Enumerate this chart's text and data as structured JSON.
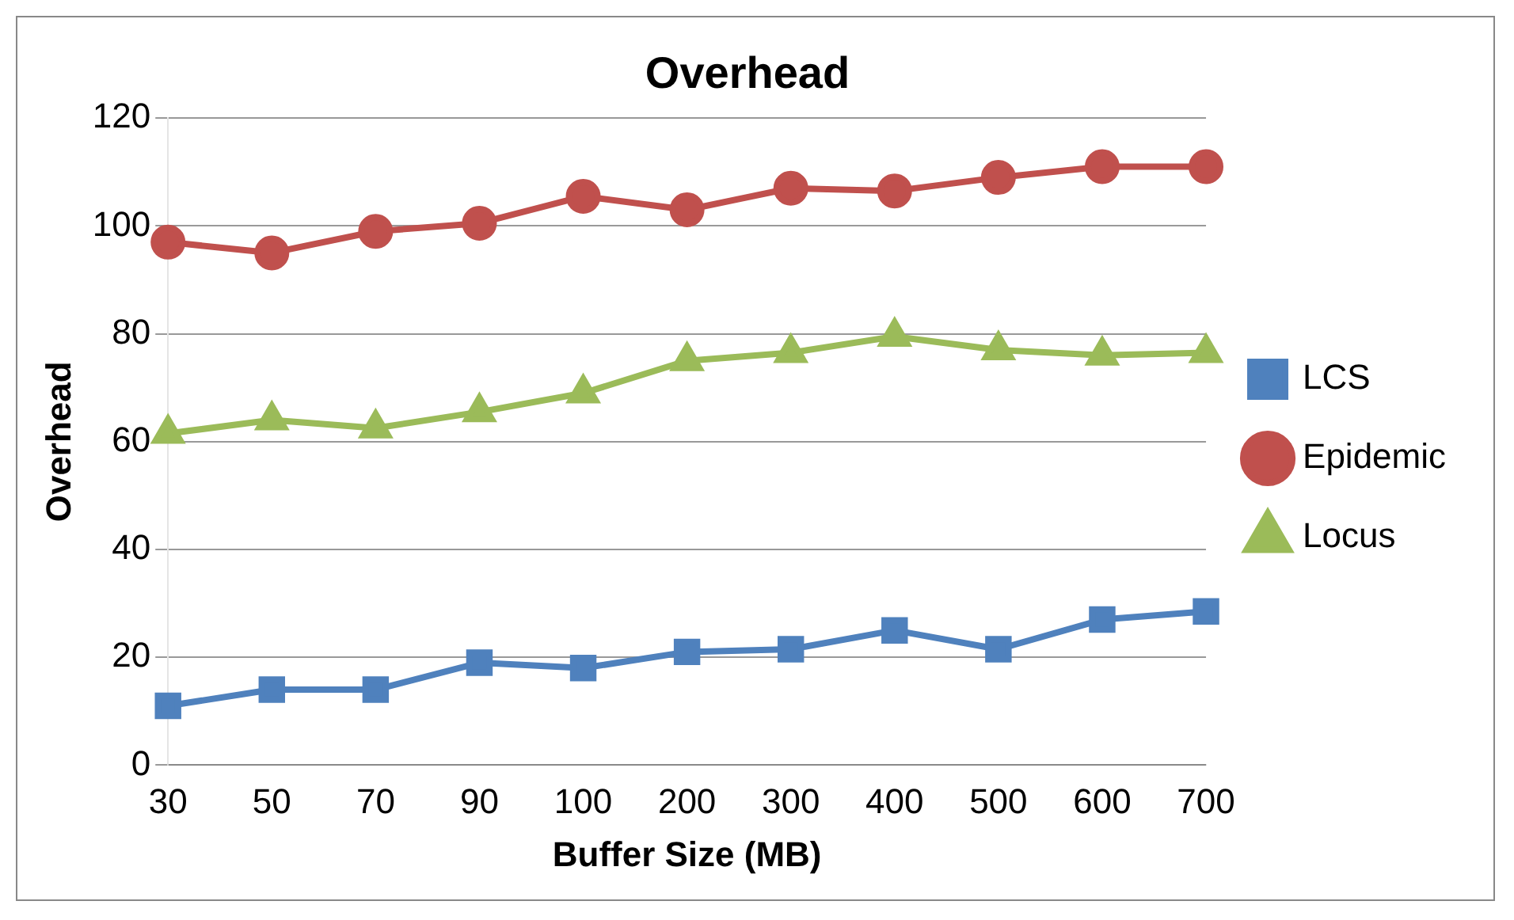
{
  "chart_data": {
    "type": "line",
    "title": "Overhead",
    "xlabel": "Buffer Size (MB)",
    "ylabel": "Overhead",
    "categories": [
      "30",
      "50",
      "70",
      "90",
      "100",
      "200",
      "300",
      "400",
      "500",
      "600",
      "700"
    ],
    "ylim": [
      0,
      120
    ],
    "yticks": [
      0,
      20,
      40,
      60,
      80,
      100,
      120
    ],
    "grid": "y",
    "legend": "right",
    "series": [
      {
        "name": "LCS",
        "color": "#4f81bd",
        "marker": "square",
        "values": [
          11,
          14,
          14,
          19,
          18,
          21,
          21.5,
          25,
          21.5,
          27,
          28.5
        ]
      },
      {
        "name": "Epidemic",
        "color": "#c0504d",
        "marker": "circle",
        "values": [
          97,
          95,
          99,
          100.5,
          105.5,
          103,
          107,
          106.5,
          109,
          111,
          111
        ]
      },
      {
        "name": "Locus",
        "color": "#9bbb59",
        "marker": "triangle",
        "values": [
          61.5,
          64,
          62.5,
          65.5,
          69,
          75,
          76.5,
          79.5,
          77,
          76,
          76.5
        ]
      }
    ]
  }
}
